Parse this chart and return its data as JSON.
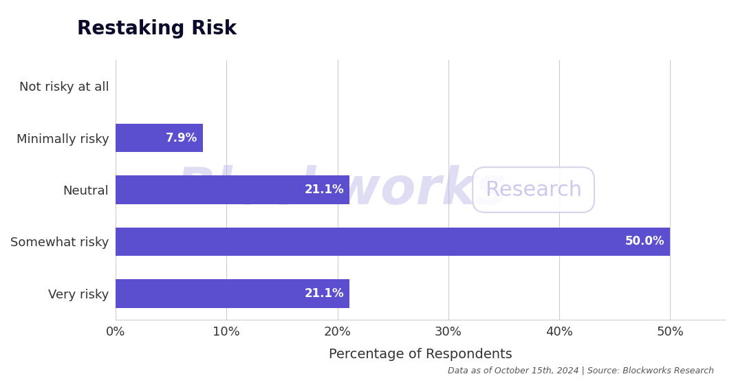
{
  "title": "Restaking Risk",
  "categories": [
    "Very risky",
    "Somewhat risky",
    "Neutral",
    "Minimally risky",
    "Not risky at all"
  ],
  "values": [
    21.1,
    50.0,
    21.1,
    7.9,
    0.0
  ],
  "bar_color": "#5B4FCF",
  "background_color": "#FFFFFF",
  "xlabel": "Percentage of Respondents",
  "xlim": [
    0,
    55
  ],
  "xticks": [
    0,
    10,
    20,
    30,
    40,
    50
  ],
  "xtick_labels": [
    "0%",
    "10%",
    "20%",
    "30%",
    "40%",
    "50%"
  ],
  "title_fontsize": 20,
  "title_color": "#0a0a2a",
  "label_fontsize": 13,
  "xlabel_fontsize": 14,
  "bar_label_fontsize": 12,
  "footer_text": "Data as of October 15th, 2024 | Source: Blockworks Research",
  "footer_fontsize": 9,
  "watermark_text": "Blockworks",
  "watermark_text2": "Research",
  "grid_color": "#cccccc",
  "tick_color": "#333333"
}
